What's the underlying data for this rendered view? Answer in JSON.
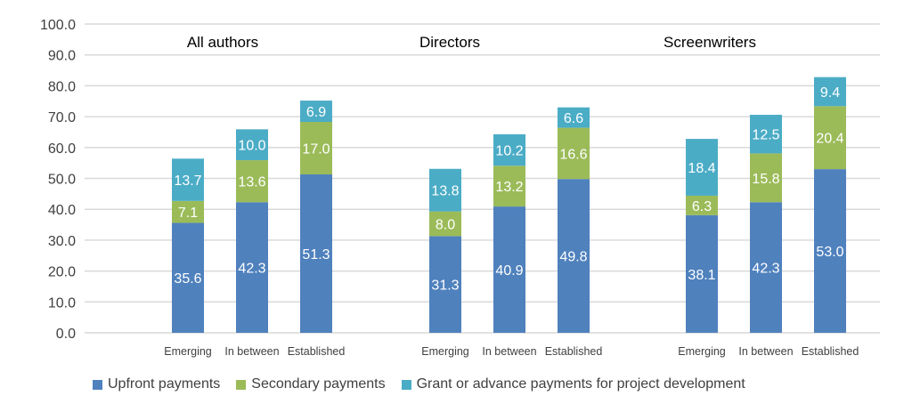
{
  "chart_data": {
    "type": "bar",
    "stacked": true,
    "ylim": [
      0,
      100
    ],
    "yticks": [
      "0.0",
      "10.0",
      "20.0",
      "30.0",
      "40.0",
      "50.0",
      "60.0",
      "70.0",
      "80.0",
      "90.0",
      "100.0"
    ],
    "grid": true,
    "legend_position": "bottom",
    "groups": [
      {
        "title": "All authors",
        "categories": [
          "Emerging",
          "In between",
          "Established"
        ]
      },
      {
        "title": "Directors",
        "categories": [
          "Emerging",
          "In between",
          "Established"
        ]
      },
      {
        "title": "Screenwriters",
        "categories": [
          "Emerging",
          "In between",
          "Established"
        ]
      }
    ],
    "series": [
      {
        "name": "Upfront payments",
        "color": "#4f81bd",
        "values": [
          [
            35.6,
            42.3,
            51.3
          ],
          [
            31.3,
            40.9,
            49.8
          ],
          [
            38.1,
            42.3,
            53.0
          ]
        ]
      },
      {
        "name": "Secondary payments",
        "color": "#9bbb59",
        "values": [
          [
            7.1,
            13.6,
            17.0
          ],
          [
            8.0,
            13.2,
            16.6
          ],
          [
            6.3,
            15.8,
            20.4
          ]
        ]
      },
      {
        "name": "Grant or advance payments for project development",
        "color": "#4bacc6",
        "values": [
          [
            13.7,
            10.0,
            6.9
          ],
          [
            13.8,
            10.2,
            6.6
          ],
          [
            18.4,
            12.5,
            9.4
          ]
        ]
      }
    ]
  }
}
